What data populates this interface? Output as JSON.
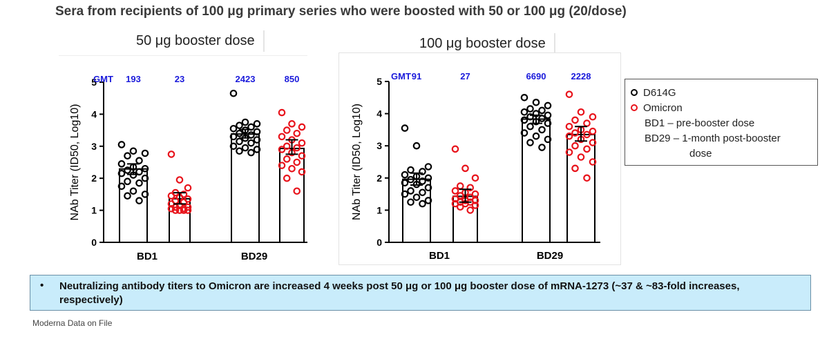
{
  "title": "Sera from recipients of 100 μg primary series who were boosted with 50 or 100 μg (20/dose)",
  "panels": [
    {
      "label": "50 μg booster dose"
    },
    {
      "label": "100 μg booster dose"
    }
  ],
  "legend": {
    "items": [
      {
        "label": "D614G",
        "color": "#000000"
      },
      {
        "label": "Omicron",
        "color": "#e8141c"
      }
    ],
    "note_bd1": "BD1 – pre-booster dose",
    "note_bd29_line1": "BD29 – 1-month post-booster",
    "note_bd29_line2": "dose"
  },
  "callout": {
    "bullet": "•",
    "text": "Neutralizing antibody titers to Omicron are increased 4 weeks post 50 μg or 100 μg booster dose of mRNA-1273 (~37 & ~83-fold increases, respectively)"
  },
  "source": "Moderna Data on File",
  "colors": {
    "d614g": "#000000",
    "omicron": "#e8141c",
    "gmt": "#1a1adb",
    "callout_bg": "#c9ecfb"
  },
  "chart_data": [
    {
      "type": "bar",
      "title": "50 μg booster dose",
      "ylabel": "NAb Titer (ID50, Log10)",
      "ylim": [
        0,
        5
      ],
      "yticks": [
        0,
        1,
        2,
        3,
        4,
        5
      ],
      "categories": [
        "BD1",
        "BD29"
      ],
      "gmt_label": "GMT",
      "series": [
        {
          "name": "D614G",
          "gmt": [
            193,
            2423
          ],
          "values": [
            2.29,
            3.38
          ],
          "error_low": [
            2.12,
            3.26
          ],
          "error_high": [
            2.45,
            3.52
          ],
          "points": [
            [
              3.05,
              2.85,
              2.78,
              2.7,
              2.55,
              2.45,
              2.35,
              2.3,
              2.25,
              2.2,
              2.15,
              2.1,
              2.0,
              1.9,
              1.85,
              1.75,
              1.6,
              1.5,
              1.45,
              1.3
            ],
            [
              4.65,
              3.75,
              3.7,
              3.65,
              3.6,
              3.55,
              3.5,
              3.45,
              3.4,
              3.35,
              3.3,
              3.25,
              3.2,
              3.15,
              3.1,
              3.0,
              2.95,
              2.9,
              2.85,
              2.8
            ]
          ]
        },
        {
          "name": "Omicron",
          "gmt": [
            23,
            850
          ],
          "values": [
            1.36,
            2.93
          ],
          "error_low": [
            1.2,
            2.75
          ],
          "error_high": [
            1.55,
            3.2
          ],
          "points": [
            [
              2.75,
              1.95,
              1.7,
              1.55,
              1.5,
              1.45,
              1.4,
              1.35,
              1.3,
              1.25,
              1.2,
              1.15,
              1.1,
              1.1,
              1.05,
              1.05,
              1.0,
              1.0,
              1.0,
              1.0
            ],
            [
              4.05,
              3.7,
              3.6,
              3.5,
              3.4,
              3.3,
              3.2,
              3.1,
              3.0,
              2.95,
              2.9,
              2.8,
              2.7,
              2.6,
              2.5,
              2.4,
              2.3,
              2.2,
              2.0,
              1.6
            ]
          ]
        }
      ]
    },
    {
      "type": "bar",
      "title": "100 μg booster dose",
      "ylabel": "NAb Titer (ID50, Log10)",
      "ylim": [
        0,
        5
      ],
      "yticks": [
        0,
        1,
        2,
        3,
        4,
        5
      ],
      "categories": [
        "BD1",
        "BD29"
      ],
      "gmt_label": "GMT",
      "series": [
        {
          "name": "D614G",
          "gmt": [
            91,
            6690
          ],
          "values": [
            1.96,
            3.83
          ],
          "error_low": [
            1.78,
            3.7
          ],
          "error_high": [
            2.15,
            3.95
          ],
          "points": [
            [
              3.55,
              3.0,
              2.35,
              2.25,
              2.2,
              2.1,
              2.05,
              2.0,
              1.95,
              1.9,
              1.85,
              1.8,
              1.7,
              1.6,
              1.55,
              1.5,
              1.4,
              1.3,
              1.25,
              1.2
            ],
            [
              4.5,
              4.35,
              4.25,
              4.15,
              4.1,
              4.05,
              4.0,
              3.95,
              3.9,
              3.85,
              3.8,
              3.75,
              3.7,
              3.6,
              3.5,
              3.4,
              3.3,
              3.2,
              3.1,
              2.95
            ]
          ]
        },
        {
          "name": "Omicron",
          "gmt": [
            27,
            2228
          ],
          "values": [
            1.43,
            3.35
          ],
          "error_low": [
            1.25,
            3.15
          ],
          "error_high": [
            1.65,
            3.6
          ],
          "points": [
            [
              2.9,
              2.3,
              2.0,
              1.75,
              1.7,
              1.6,
              1.55,
              1.5,
              1.45,
              1.4,
              1.35,
              1.3,
              1.3,
              1.25,
              1.25,
              1.2,
              1.2,
              1.15,
              1.1,
              1.0
            ],
            [
              4.6,
              4.05,
              3.9,
              3.8,
              3.7,
              3.6,
              3.5,
              3.45,
              3.4,
              3.35,
              3.3,
              3.2,
              3.1,
              3.0,
              2.9,
              2.8,
              2.65,
              2.5,
              2.3,
              2.0
            ]
          ]
        }
      ]
    }
  ]
}
